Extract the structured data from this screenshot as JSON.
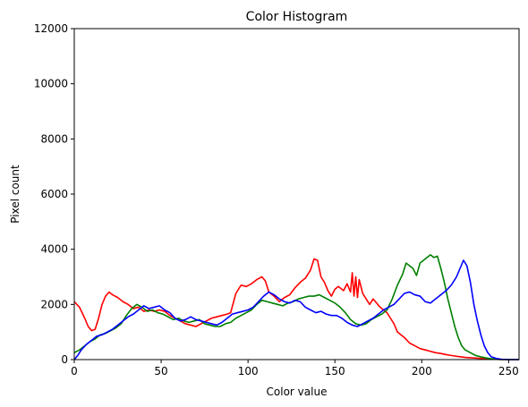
{
  "chart_data": {
    "type": "line",
    "title": "Color Histogram",
    "xlabel": "Color value",
    "ylabel": "Pixel count",
    "xlim": [
      0,
      256
    ],
    "ylim": [
      0,
      12000
    ],
    "xticks": [
      0,
      50,
      100,
      150,
      200,
      250
    ],
    "yticks": [
      0,
      2000,
      4000,
      6000,
      8000,
      10000,
      12000
    ],
    "grid": false,
    "legend": "none",
    "series": [
      {
        "color": "#ff0000",
        "points": [
          [
            0,
            2100
          ],
          [
            3,
            1900
          ],
          [
            6,
            1500
          ],
          [
            8,
            1200
          ],
          [
            10,
            1050
          ],
          [
            12,
            1100
          ],
          [
            14,
            1500
          ],
          [
            16,
            2000
          ],
          [
            18,
            2300
          ],
          [
            20,
            2450
          ],
          [
            22,
            2350
          ],
          [
            25,
            2250
          ],
          [
            28,
            2100
          ],
          [
            31,
            2000
          ],
          [
            34,
            1850
          ],
          [
            37,
            1900
          ],
          [
            40,
            1750
          ],
          [
            43,
            1800
          ],
          [
            46,
            1750
          ],
          [
            49,
            1800
          ],
          [
            52,
            1750
          ],
          [
            55,
            1600
          ],
          [
            58,
            1500
          ],
          [
            61,
            1400
          ],
          [
            64,
            1300
          ],
          [
            67,
            1250
          ],
          [
            70,
            1200
          ],
          [
            73,
            1300
          ],
          [
            76,
            1400
          ],
          [
            79,
            1500
          ],
          [
            82,
            1550
          ],
          [
            85,
            1600
          ],
          [
            88,
            1650
          ],
          [
            90,
            1700
          ],
          [
            93,
            2400
          ],
          [
            96,
            2700
          ],
          [
            99,
            2650
          ],
          [
            102,
            2750
          ],
          [
            105,
            2900
          ],
          [
            108,
            3000
          ],
          [
            110,
            2850
          ],
          [
            112,
            2450
          ],
          [
            115,
            2300
          ],
          [
            118,
            2100
          ],
          [
            121,
            2250
          ],
          [
            124,
            2350
          ],
          [
            127,
            2600
          ],
          [
            130,
            2800
          ],
          [
            133,
            2950
          ],
          [
            136,
            3250
          ],
          [
            138,
            3650
          ],
          [
            140,
            3600
          ],
          [
            142,
            3000
          ],
          [
            144,
            2800
          ],
          [
            146,
            2500
          ],
          [
            148,
            2300
          ],
          [
            150,
            2550
          ],
          [
            152,
            2650
          ],
          [
            155,
            2500
          ],
          [
            157,
            2750
          ],
          [
            159,
            2450
          ],
          [
            160,
            3150
          ],
          [
            161,
            2300
          ],
          [
            162,
            3000
          ],
          [
            163,
            2250
          ],
          [
            164,
            2900
          ],
          [
            166,
            2400
          ],
          [
            168,
            2200
          ],
          [
            170,
            2000
          ],
          [
            172,
            2200
          ],
          [
            174,
            2050
          ],
          [
            176,
            1900
          ],
          [
            178,
            1800
          ],
          [
            180,
            1700
          ],
          [
            182,
            1500
          ],
          [
            184,
            1300
          ],
          [
            186,
            1000
          ],
          [
            188,
            900
          ],
          [
            190,
            800
          ],
          [
            193,
            600
          ],
          [
            196,
            500
          ],
          [
            199,
            400
          ],
          [
            202,
            350
          ],
          [
            205,
            300
          ],
          [
            208,
            250
          ],
          [
            211,
            220
          ],
          [
            214,
            180
          ],
          [
            217,
            150
          ],
          [
            220,
            120
          ],
          [
            225,
            80
          ],
          [
            230,
            60
          ],
          [
            235,
            40
          ],
          [
            240,
            20
          ],
          [
            245,
            5
          ],
          [
            250,
            0
          ],
          [
            256,
            0
          ]
        ]
      },
      {
        "color": "#008000",
        "points": [
          [
            0,
            250
          ],
          [
            3,
            350
          ],
          [
            6,
            500
          ],
          [
            9,
            650
          ],
          [
            12,
            750
          ],
          [
            15,
            900
          ],
          [
            18,
            950
          ],
          [
            21,
            1050
          ],
          [
            24,
            1150
          ],
          [
            27,
            1300
          ],
          [
            30,
            1600
          ],
          [
            33,
            1850
          ],
          [
            36,
            2000
          ],
          [
            39,
            1900
          ],
          [
            42,
            1750
          ],
          [
            45,
            1800
          ],
          [
            48,
            1700
          ],
          [
            51,
            1650
          ],
          [
            54,
            1550
          ],
          [
            57,
            1450
          ],
          [
            60,
            1500
          ],
          [
            63,
            1400
          ],
          [
            66,
            1350
          ],
          [
            69,
            1400
          ],
          [
            72,
            1450
          ],
          [
            75,
            1300
          ],
          [
            78,
            1250
          ],
          [
            81,
            1200
          ],
          [
            84,
            1200
          ],
          [
            87,
            1300
          ],
          [
            90,
            1350
          ],
          [
            93,
            1500
          ],
          [
            96,
            1600
          ],
          [
            99,
            1700
          ],
          [
            102,
            1800
          ],
          [
            105,
            2000
          ],
          [
            108,
            2150
          ],
          [
            111,
            2100
          ],
          [
            114,
            2050
          ],
          [
            117,
            2000
          ],
          [
            120,
            1950
          ],
          [
            123,
            2050
          ],
          [
            126,
            2100
          ],
          [
            129,
            2200
          ],
          [
            132,
            2250
          ],
          [
            135,
            2300
          ],
          [
            138,
            2300
          ],
          [
            141,
            2350
          ],
          [
            144,
            2250
          ],
          [
            147,
            2150
          ],
          [
            150,
            2050
          ],
          [
            153,
            1900
          ],
          [
            156,
            1700
          ],
          [
            159,
            1450
          ],
          [
            162,
            1300
          ],
          [
            165,
            1250
          ],
          [
            168,
            1300
          ],
          [
            171,
            1450
          ],
          [
            174,
            1550
          ],
          [
            177,
            1650
          ],
          [
            180,
            1800
          ],
          [
            183,
            2200
          ],
          [
            186,
            2700
          ],
          [
            189,
            3100
          ],
          [
            191,
            3500
          ],
          [
            193,
            3400
          ],
          [
            195,
            3300
          ],
          [
            197,
            3050
          ],
          [
            199,
            3500
          ],
          [
            201,
            3600
          ],
          [
            203,
            3700
          ],
          [
            205,
            3800
          ],
          [
            207,
            3700
          ],
          [
            209,
            3750
          ],
          [
            211,
            3300
          ],
          [
            213,
            2800
          ],
          [
            215,
            2200
          ],
          [
            217,
            1700
          ],
          [
            219,
            1200
          ],
          [
            221,
            800
          ],
          [
            223,
            500
          ],
          [
            225,
            350
          ],
          [
            228,
            250
          ],
          [
            231,
            150
          ],
          [
            234,
            100
          ],
          [
            237,
            60
          ],
          [
            240,
            30
          ],
          [
            243,
            10
          ],
          [
            246,
            0
          ],
          [
            256,
            0
          ]
        ]
      },
      {
        "color": "#0000ff",
        "points": [
          [
            0,
            0
          ],
          [
            2,
            150
          ],
          [
            4,
            350
          ],
          [
            7,
            550
          ],
          [
            10,
            700
          ],
          [
            13,
            850
          ],
          [
            16,
            900
          ],
          [
            19,
            1000
          ],
          [
            22,
            1100
          ],
          [
            25,
            1250
          ],
          [
            28,
            1400
          ],
          [
            31,
            1550
          ],
          [
            34,
            1650
          ],
          [
            37,
            1800
          ],
          [
            40,
            1950
          ],
          [
            43,
            1850
          ],
          [
            46,
            1900
          ],
          [
            49,
            1950
          ],
          [
            52,
            1800
          ],
          [
            55,
            1700
          ],
          [
            58,
            1500
          ],
          [
            61,
            1400
          ],
          [
            64,
            1450
          ],
          [
            67,
            1550
          ],
          [
            70,
            1450
          ],
          [
            73,
            1400
          ],
          [
            76,
            1350
          ],
          [
            79,
            1300
          ],
          [
            82,
            1250
          ],
          [
            85,
            1350
          ],
          [
            88,
            1500
          ],
          [
            91,
            1650
          ],
          [
            94,
            1700
          ],
          [
            97,
            1750
          ],
          [
            100,
            1800
          ],
          [
            103,
            1900
          ],
          [
            106,
            2100
          ],
          [
            109,
            2300
          ],
          [
            112,
            2450
          ],
          [
            115,
            2350
          ],
          [
            118,
            2200
          ],
          [
            121,
            2100
          ],
          [
            124,
            2050
          ],
          [
            127,
            2150
          ],
          [
            130,
            2100
          ],
          [
            133,
            1900
          ],
          [
            136,
            1800
          ],
          [
            139,
            1700
          ],
          [
            142,
            1750
          ],
          [
            145,
            1650
          ],
          [
            148,
            1600
          ],
          [
            151,
            1600
          ],
          [
            154,
            1500
          ],
          [
            157,
            1350
          ],
          [
            160,
            1250
          ],
          [
            163,
            1200
          ],
          [
            166,
            1300
          ],
          [
            169,
            1400
          ],
          [
            172,
            1500
          ],
          [
            175,
            1650
          ],
          [
            178,
            1800
          ],
          [
            181,
            1900
          ],
          [
            184,
            2000
          ],
          [
            187,
            2200
          ],
          [
            190,
            2400
          ],
          [
            193,
            2450
          ],
          [
            196,
            2350
          ],
          [
            199,
            2300
          ],
          [
            202,
            2100
          ],
          [
            205,
            2050
          ],
          [
            208,
            2200
          ],
          [
            211,
            2350
          ],
          [
            214,
            2500
          ],
          [
            217,
            2700
          ],
          [
            220,
            3000
          ],
          [
            222,
            3300
          ],
          [
            224,
            3600
          ],
          [
            226,
            3400
          ],
          [
            228,
            2800
          ],
          [
            230,
            2000
          ],
          [
            232,
            1400
          ],
          [
            234,
            900
          ],
          [
            236,
            500
          ],
          [
            238,
            250
          ],
          [
            240,
            100
          ],
          [
            243,
            40
          ],
          [
            246,
            10
          ],
          [
            250,
            0
          ],
          [
            256,
            0
          ]
        ]
      }
    ]
  }
}
